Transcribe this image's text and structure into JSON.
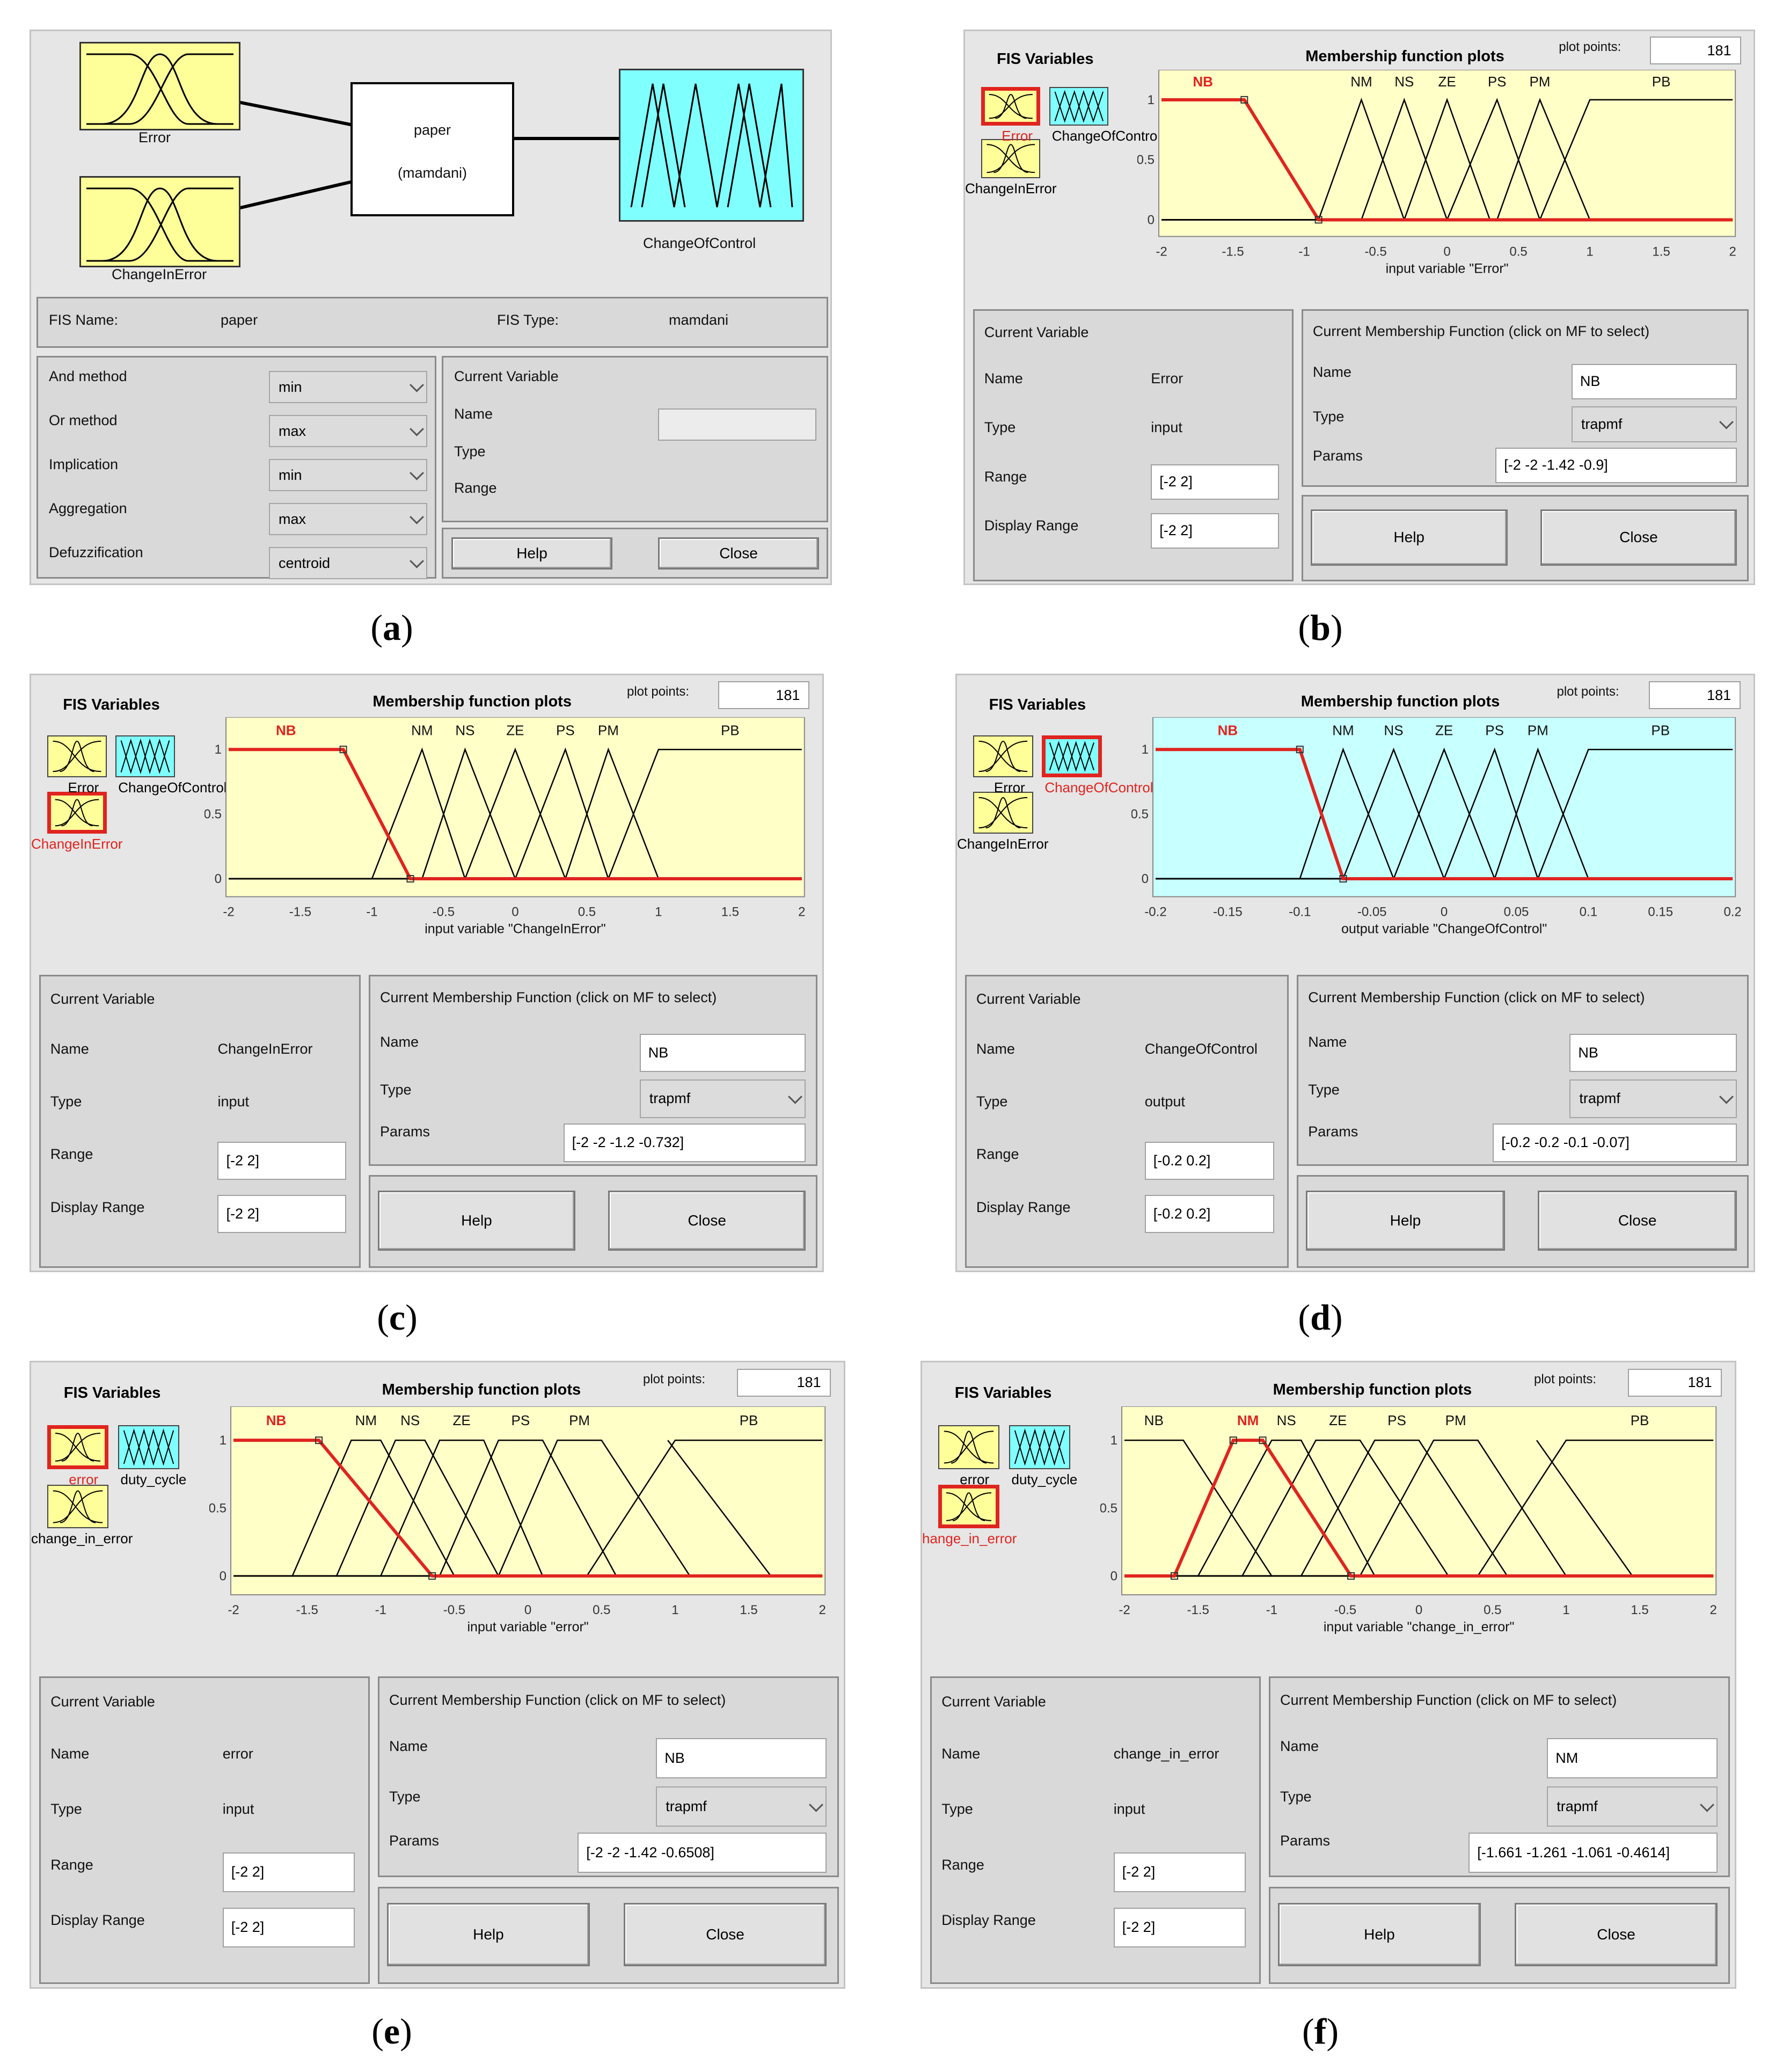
{
  "captions": [
    "(a)",
    "(b)",
    "(c)",
    "(d)",
    "(e)",
    "(f)"
  ],
  "fis_editor": {
    "inputs": [
      "Error",
      "ChangeInError"
    ],
    "system_name": "paper",
    "system_type": "(mamdani)",
    "output": "ChangeOfControl",
    "fis_name_label": "FIS Name:",
    "fis_name": "paper",
    "fis_type_label": "FIS Type:",
    "fis_type": "mamdani",
    "methods": [
      {
        "label": "And method",
        "value": "min"
      },
      {
        "label": "Or method",
        "value": "max"
      },
      {
        "label": "Implication",
        "value": "min"
      },
      {
        "label": "Aggregation",
        "value": "max"
      },
      {
        "label": "Defuzzification",
        "value": "centroid"
      }
    ],
    "current_variable_title": "Current Variable",
    "name_label": "Name",
    "type_label": "Type",
    "range_label": "Range",
    "help": "Help",
    "close": "Close"
  },
  "labels": {
    "fis_variables": "FIS Variables",
    "plot_title": "Membership function plots",
    "plot_points_label": "plot points:",
    "current_variable": "Current Variable",
    "current_mf": "Current Membership Function (click on MF to select)",
    "name": "Name",
    "type": "Type",
    "range": "Range",
    "display_range": "Display Range",
    "params": "Params",
    "help": "Help",
    "close": "Close"
  },
  "mf_editors": [
    {
      "id": "b",
      "plot_points": "181",
      "vars": [
        "Error",
        "ChangeOfControl",
        "ChangeInError"
      ],
      "selected": 0,
      "xlabel": "input variable \"Error\"",
      "ticks": [
        "-2",
        "-1.5",
        "-1",
        "-0.5",
        "0",
        "0.5",
        "1",
        "1.5",
        "2"
      ],
      "yticks": [
        "0",
        "0.5",
        "1"
      ],
      "xmin": -2,
      "xmax": 2,
      "bg": "#ffffc8",
      "var_name": "Error",
      "var_type": "input",
      "range": "[-2 2]",
      "display_range": "[-2 2]",
      "mf_name": "NB",
      "mf_type": "trapmf",
      "params": "[-2 -2 -1.42 -0.9]",
      "chart_data": {
        "type": "line",
        "mfs": [
          {
            "name": "NB",
            "points": [
              [
                -2,
                1
              ],
              [
                -1.42,
                1
              ],
              [
                -0.9,
                0
              ],
              [
                2,
                0
              ]
            ],
            "selected": true
          },
          {
            "name": "NM",
            "points": [
              [
                -0.9,
                0
              ],
              [
                -0.6,
                1
              ],
              [
                -0.3,
                0
              ]
            ]
          },
          {
            "name": "NS",
            "points": [
              [
                -0.6,
                0
              ],
              [
                -0.3,
                1
              ],
              [
                0,
                0
              ]
            ]
          },
          {
            "name": "ZE",
            "points": [
              [
                -0.3,
                0
              ],
              [
                0,
                1
              ],
              [
                0.3,
                0
              ]
            ]
          },
          {
            "name": "PS",
            "points": [
              [
                0,
                0
              ],
              [
                0.35,
                1
              ],
              [
                0.65,
                0
              ]
            ]
          },
          {
            "name": "PM",
            "points": [
              [
                0.35,
                0
              ],
              [
                0.65,
                1
              ],
              [
                1,
                0
              ]
            ]
          },
          {
            "name": "PB",
            "points": [
              [
                0.65,
                0
              ],
              [
                1,
                1
              ],
              [
                2,
                1
              ]
            ]
          }
        ]
      }
    },
    {
      "id": "c",
      "plot_points": "181",
      "vars": [
        "Error",
        "ChangeOfControl",
        "ChangeInError"
      ],
      "selected": 2,
      "xlabel": "input variable \"ChangeInError\"",
      "ticks": [
        "-2",
        "-1.5",
        "-1",
        "-0.5",
        "0",
        "0.5",
        "1",
        "1.5",
        "2"
      ],
      "yticks": [
        "0",
        "0.5",
        "1"
      ],
      "xmin": -2,
      "xmax": 2,
      "bg": "#ffffc8",
      "var_name": "ChangeInError",
      "var_type": "input",
      "range": "[-2 2]",
      "display_range": "[-2 2]",
      "mf_name": "NB",
      "mf_type": "trapmf",
      "params": "[-2 -2 -1.2 -0.732]",
      "chart_data": {
        "type": "line",
        "mfs": [
          {
            "name": "NB",
            "points": [
              [
                -2,
                1
              ],
              [
                -1.2,
                1
              ],
              [
                -0.732,
                0
              ],
              [
                2,
                0
              ]
            ],
            "selected": true
          },
          {
            "name": "NM",
            "points": [
              [
                -1,
                0
              ],
              [
                -0.65,
                1
              ],
              [
                -0.35,
                0
              ]
            ]
          },
          {
            "name": "NS",
            "points": [
              [
                -0.65,
                0
              ],
              [
                -0.35,
                1
              ],
              [
                0,
                0
              ]
            ]
          },
          {
            "name": "ZE",
            "points": [
              [
                -0.35,
                0
              ],
              [
                0,
                1
              ],
              [
                0.35,
                0
              ]
            ]
          },
          {
            "name": "PS",
            "points": [
              [
                0,
                0
              ],
              [
                0.35,
                1
              ],
              [
                0.65,
                0
              ]
            ]
          },
          {
            "name": "PM",
            "points": [
              [
                0.35,
                0
              ],
              [
                0.65,
                1
              ],
              [
                1,
                0
              ]
            ]
          },
          {
            "name": "PB",
            "points": [
              [
                0.65,
                0
              ],
              [
                1,
                1
              ],
              [
                2,
                1
              ]
            ]
          }
        ]
      }
    },
    {
      "id": "d",
      "plot_points": "181",
      "vars": [
        "Error",
        "ChangeOfControl",
        "ChangeInError"
      ],
      "selected": 1,
      "xlabel": "output variable \"ChangeOfControl\"",
      "ticks": [
        "-0.2",
        "-0.15",
        "-0.1",
        "-0.05",
        "0",
        "0.05",
        "0.1",
        "0.15",
        "0.2"
      ],
      "yticks": [
        "0",
        "0.5",
        "1"
      ],
      "xmin": -0.2,
      "xmax": 0.2,
      "bg": "#c8ffff",
      "var_name": "ChangeOfControl",
      "var_type": "output",
      "range": "[-0.2 0.2]",
      "display_range": "[-0.2 0.2]",
      "mf_name": "NB",
      "mf_type": "trapmf",
      "params": "[-0.2 -0.2 -0.1 -0.07]",
      "chart_data": {
        "type": "line",
        "mfs": [
          {
            "name": "NB",
            "points": [
              [
                -0.2,
                1
              ],
              [
                -0.1,
                1
              ],
              [
                -0.07,
                0
              ],
              [
                0.2,
                0
              ]
            ],
            "selected": true
          },
          {
            "name": "NM",
            "points": [
              [
                -0.1,
                0
              ],
              [
                -0.07,
                1
              ],
              [
                -0.035,
                0
              ]
            ]
          },
          {
            "name": "NS",
            "points": [
              [
                -0.07,
                0
              ],
              [
                -0.035,
                1
              ],
              [
                0,
                0
              ]
            ]
          },
          {
            "name": "ZE",
            "points": [
              [
                -0.035,
                0
              ],
              [
                0,
                1
              ],
              [
                0.035,
                0
              ]
            ]
          },
          {
            "name": "PS",
            "points": [
              [
                0,
                0
              ],
              [
                0.035,
                1
              ],
              [
                0.065,
                0
              ]
            ]
          },
          {
            "name": "PM",
            "points": [
              [
                0.035,
                0
              ],
              [
                0.065,
                1
              ],
              [
                0.1,
                0
              ]
            ]
          },
          {
            "name": "PB",
            "points": [
              [
                0.065,
                0
              ],
              [
                0.1,
                1
              ],
              [
                0.2,
                1
              ]
            ]
          }
        ]
      }
    },
    {
      "id": "e",
      "plot_points": "181",
      "vars": [
        "error",
        "duty_cycle",
        "change_in_error"
      ],
      "selected": 0,
      "xlabel": "input variable \"error\"",
      "ticks": [
        "-2",
        "-1.5",
        "-1",
        "-0.5",
        "0",
        "0.5",
        "1",
        "1.5",
        "2"
      ],
      "yticks": [
        "0",
        "0.5",
        "1"
      ],
      "xmin": -2,
      "xmax": 2,
      "bg": "#ffffc8",
      "var_name": "error",
      "var_type": "input",
      "range": "[-2 2]",
      "display_range": "[-2 2]",
      "mf_name": "NB",
      "mf_type": "trapmf",
      "params": "[-2 -2 -1.42 -0.6508]",
      "chart_data": {
        "type": "line",
        "mfs": [
          {
            "name": "NB",
            "points": [
              [
                -2,
                1
              ],
              [
                -1.42,
                1
              ],
              [
                -0.6508,
                0
              ],
              [
                2,
                0
              ]
            ],
            "selected": true
          },
          {
            "name": "NM",
            "points": [
              [
                -1.6,
                0
              ],
              [
                -1.2,
                1
              ],
              [
                -1.0,
                1
              ],
              [
                -0.5,
                0
              ]
            ]
          },
          {
            "name": "NS",
            "points": [
              [
                -1.3,
                0
              ],
              [
                -0.9,
                1
              ],
              [
                -0.7,
                1
              ],
              [
                -0.2,
                0
              ]
            ]
          },
          {
            "name": "ZE",
            "points": [
              [
                -1.0,
                0
              ],
              [
                -0.6,
                1
              ],
              [
                -0.3,
                1
              ],
              [
                0.1,
                0
              ]
            ]
          },
          {
            "name": "PS",
            "points": [
              [
                -0.6,
                0
              ],
              [
                -0.2,
                1
              ],
              [
                0.1,
                1
              ],
              [
                0.6,
                0
              ]
            ]
          },
          {
            "name": "PM",
            "points": [
              [
                -0.2,
                0
              ],
              [
                0.2,
                1
              ],
              [
                0.5,
                1
              ],
              [
                1.1,
                0
              ]
            ]
          },
          {
            "name": "PB",
            "points": [
              [
                0.4,
                0
              ],
              [
                1.0,
                1
              ],
              [
                2,
                1
              ]
            ]
          },
          {
            "name": "",
            "points": [
              [
                0.95,
                1
              ],
              [
                1.65,
                0
              ]
            ]
          }
        ]
      }
    },
    {
      "id": "f",
      "plot_points": "181",
      "vars": [
        "error",
        "duty_cycle",
        "hange_in_error"
      ],
      "selected": 2,
      "xlabel": "input variable \"change_in_error\"",
      "ticks": [
        "-2",
        "-1.5",
        "-1",
        "-0.5",
        "0",
        "0.5",
        "1",
        "1.5",
        "2"
      ],
      "yticks": [
        "0",
        "0.5",
        "1"
      ],
      "xmin": -2,
      "xmax": 2,
      "bg": "#ffffc8",
      "var_name": "change_in_error",
      "var_type": "input",
      "range": "[-2 2]",
      "display_range": "[-2 2]",
      "mf_name": "NM",
      "mf_type": "trapmf",
      "params": "[-1.661 -1.261 -1.061 -0.4614]",
      "chart_data": {
        "type": "line",
        "mfs": [
          {
            "name": "NB",
            "points": [
              [
                -2,
                1
              ],
              [
                -1.6,
                1
              ],
              [
                -1.0,
                0
              ]
            ]
          },
          {
            "name": "NM",
            "points": [
              [
                -2,
                0
              ],
              [
                -1.661,
                0
              ],
              [
                -1.261,
                1
              ],
              [
                -1.061,
                1
              ],
              [
                -0.4614,
                0
              ],
              [
                2,
                0
              ]
            ],
            "selected": true
          },
          {
            "name": "NS",
            "points": [
              [
                -1.5,
                0
              ],
              [
                -1.0,
                1
              ],
              [
                -0.8,
                1
              ],
              [
                -0.3,
                0
              ]
            ]
          },
          {
            "name": "ZE",
            "points": [
              [
                -1.2,
                0
              ],
              [
                -0.7,
                1
              ],
              [
                -0.4,
                1
              ],
              [
                0.2,
                0
              ]
            ]
          },
          {
            "name": "PS",
            "points": [
              [
                -0.8,
                0
              ],
              [
                -0.3,
                1
              ],
              [
                0,
                1
              ],
              [
                0.6,
                0
              ]
            ]
          },
          {
            "name": "PM",
            "points": [
              [
                -0.4,
                0
              ],
              [
                0.1,
                1
              ],
              [
                0.4,
                1
              ],
              [
                1.0,
                0
              ]
            ]
          },
          {
            "name": "PB",
            "points": [
              [
                0.4,
                0
              ],
              [
                1.0,
                1
              ],
              [
                2,
                1
              ]
            ]
          },
          {
            "name": "",
            "points": [
              [
                0.8,
                1
              ],
              [
                1.45,
                0
              ]
            ]
          }
        ]
      }
    }
  ]
}
